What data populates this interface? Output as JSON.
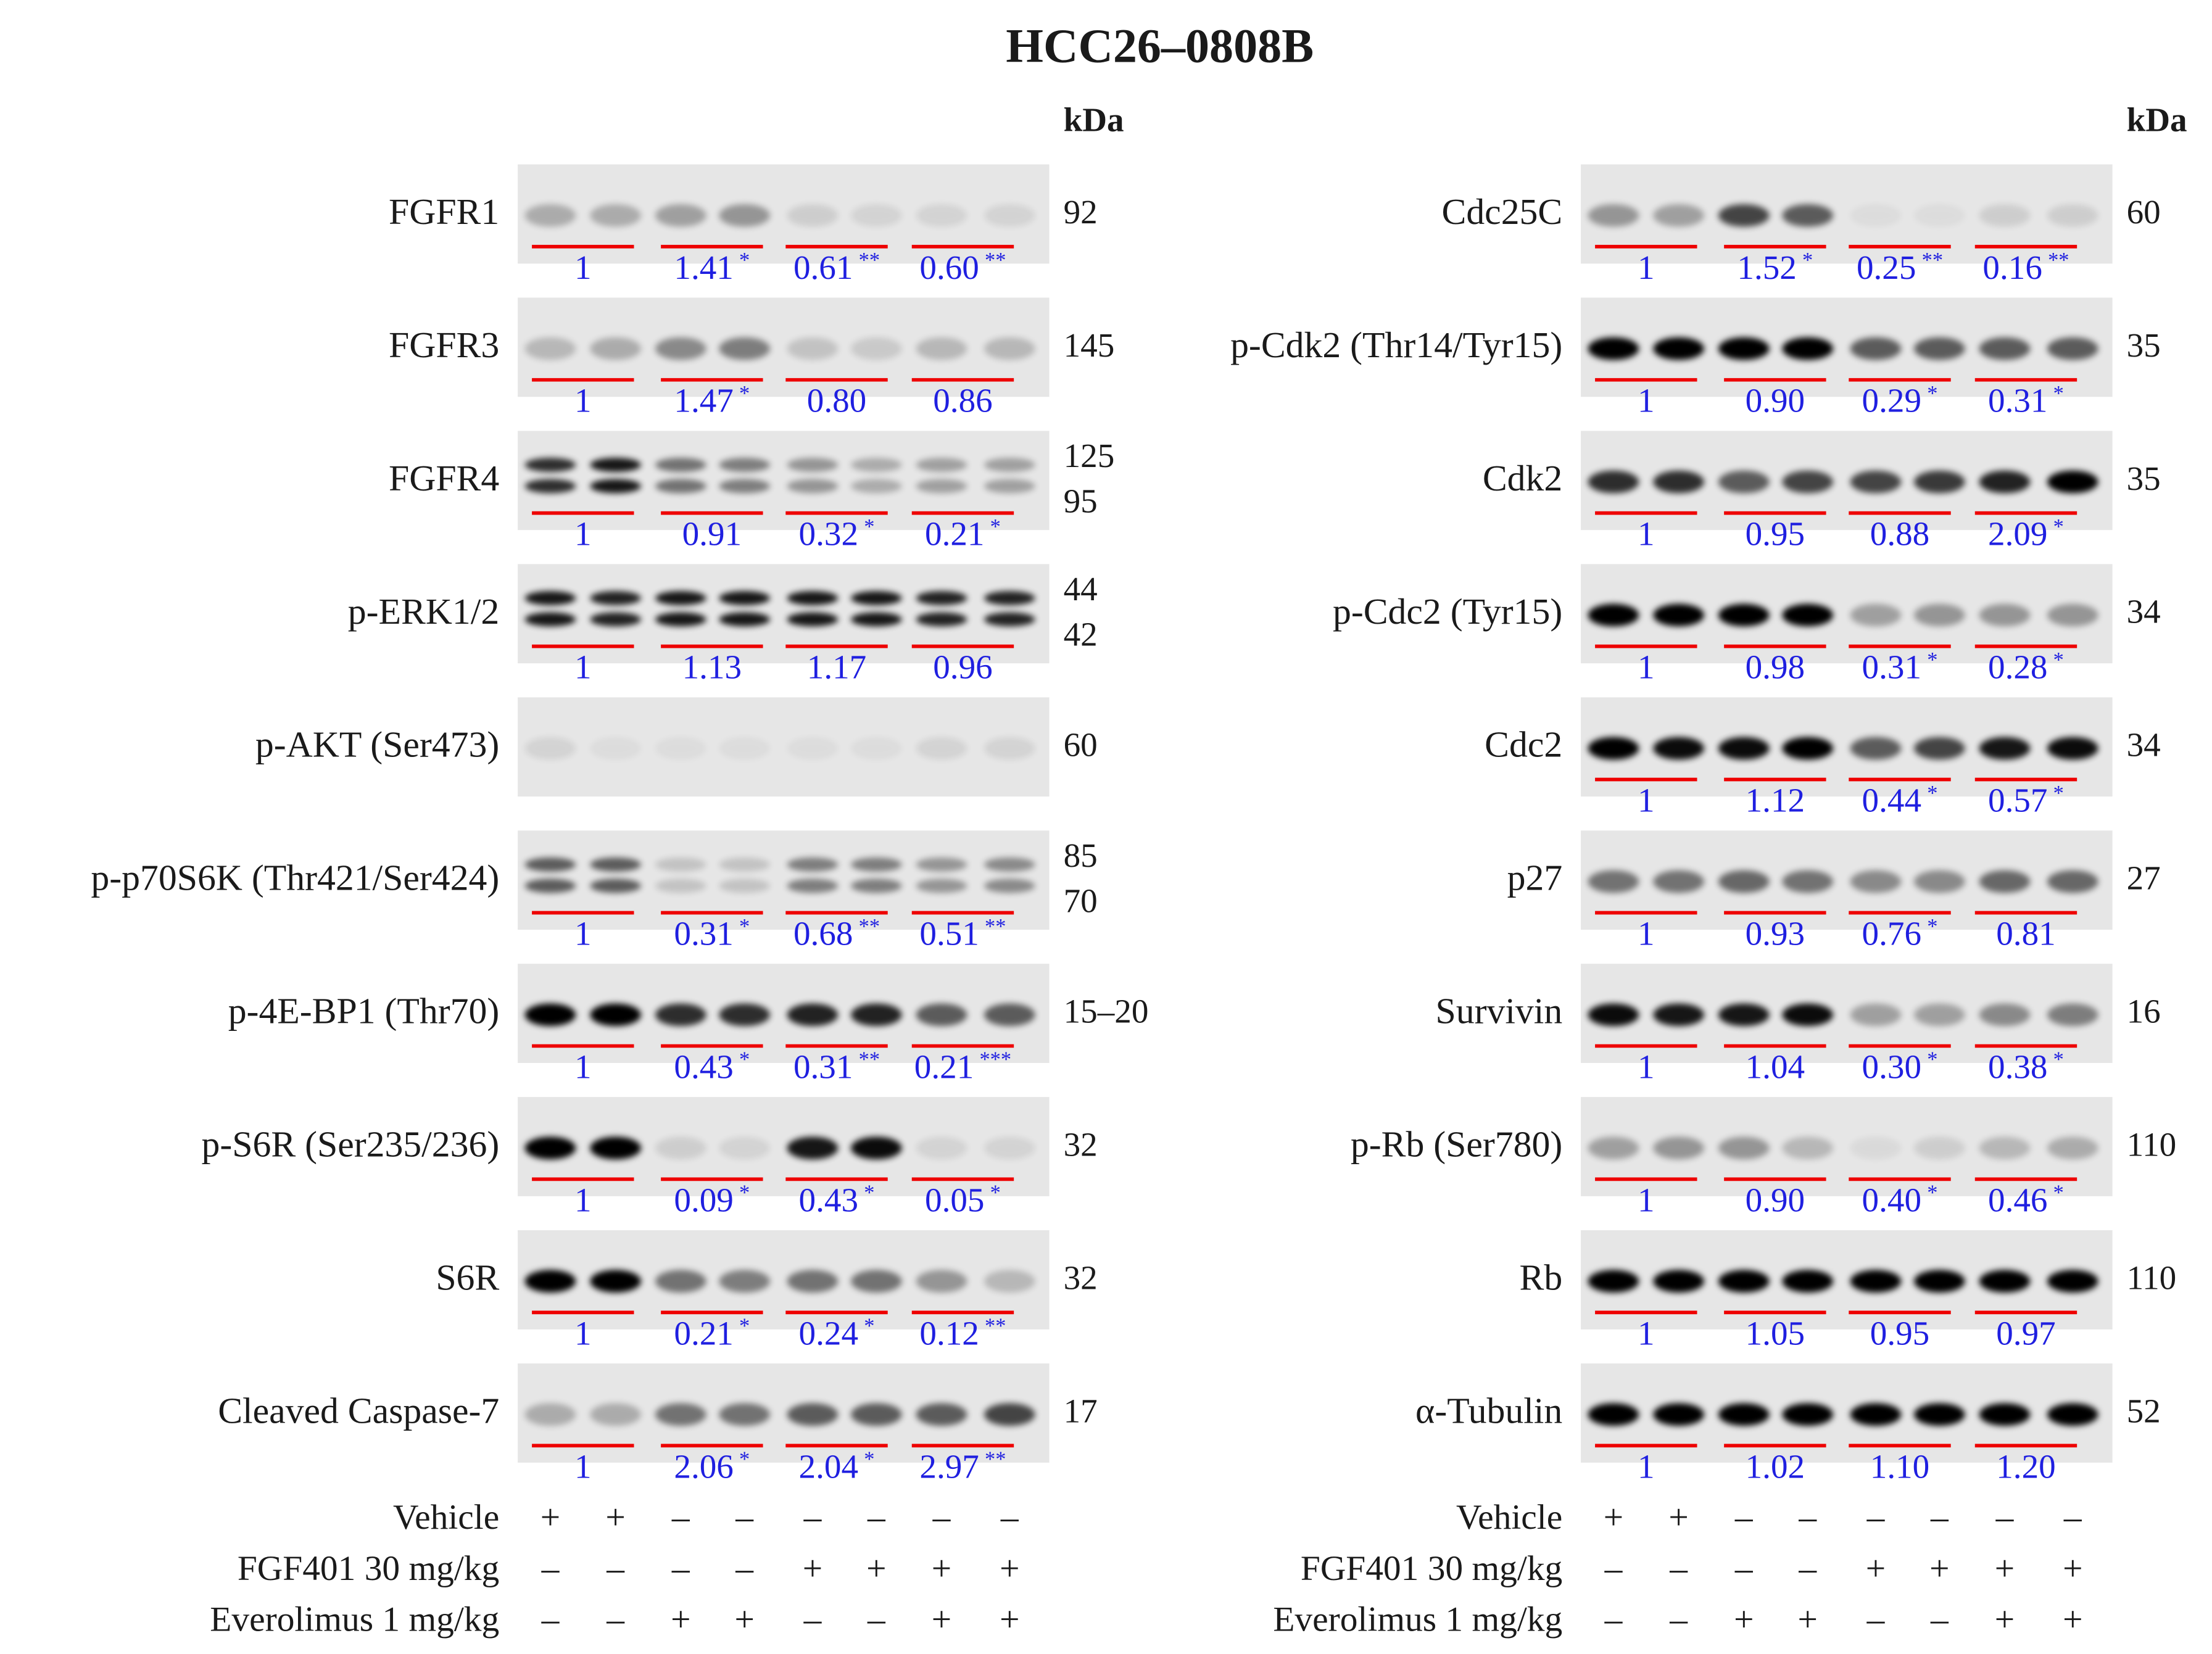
{
  "title": "HCC26–0808B",
  "kda_label": "kDa",
  "treatments": [
    {
      "label": "Vehicle",
      "signs": [
        "+",
        "+",
        "–",
        "–",
        "–",
        "–",
        "–",
        "–"
      ]
    },
    {
      "label": "FGF401 30 mg/kg",
      "signs": [
        "–",
        "–",
        "–",
        "–",
        "+",
        "+",
        "+",
        "+"
      ]
    },
    {
      "label": "Everolimus 1 mg/kg",
      "signs": [
        "–",
        "–",
        "+",
        "+",
        "–",
        "–",
        "+",
        "+"
      ]
    }
  ],
  "panels": [
    {
      "blots": [
        {
          "label": "FGFR1",
          "kda": [
            "92"
          ],
          "quant": [
            {
              "value": "1"
            },
            {
              "value": "1.41",
              "sig": "*"
            },
            {
              "value": "0.61",
              "sig": "**"
            },
            {
              "value": "0.60",
              "sig": "**"
            }
          ]
        },
        {
          "label": "FGFR3",
          "kda": [
            "145"
          ],
          "quant": [
            {
              "value": "1"
            },
            {
              "value": "1.47",
              "sig": "*"
            },
            {
              "value": "0.80"
            },
            {
              "value": "0.86"
            }
          ]
        },
        {
          "label": "FGFR4",
          "kda": [
            "125",
            "95"
          ],
          "quant": [
            {
              "value": "1"
            },
            {
              "value": "0.91"
            },
            {
              "value": "0.32",
              "sig": "*"
            },
            {
              "value": "0.21",
              "sig": "*"
            }
          ]
        },
        {
          "label": "p-ERK1/2",
          "kda": [
            "44",
            "42"
          ],
          "quant": [
            {
              "value": "1"
            },
            {
              "value": "1.13"
            },
            {
              "value": "1.17"
            },
            {
              "value": "0.96"
            }
          ]
        },
        {
          "label": "p-AKT (Ser473)",
          "kda": [
            "60"
          ],
          "quant": []
        },
        {
          "label": "p-p70S6K (Thr421/Ser424)",
          "kda": [
            "85",
            "70"
          ],
          "quant": [
            {
              "value": "1"
            },
            {
              "value": "0.31",
              "sig": "*"
            },
            {
              "value": "0.68",
              "sig": "**"
            },
            {
              "value": "0.51",
              "sig": "**"
            }
          ]
        },
        {
          "label": "p-4E-BP1 (Thr70)",
          "kda": [
            "15–20"
          ],
          "quant": [
            {
              "value": "1"
            },
            {
              "value": "0.43",
              "sig": "*"
            },
            {
              "value": "0.31",
              "sig": "**"
            },
            {
              "value": "0.21",
              "sig": "***"
            }
          ]
        },
        {
          "label": "p-S6R (Ser235/236)",
          "kda": [
            "32"
          ],
          "quant": [
            {
              "value": "1"
            },
            {
              "value": "0.09",
              "sig": "*"
            },
            {
              "value": "0.43",
              "sig": "*"
            },
            {
              "value": "0.05",
              "sig": "*"
            }
          ]
        },
        {
          "label": "S6R",
          "kda": [
            "32"
          ],
          "quant": [
            {
              "value": "1"
            },
            {
              "value": "0.21",
              "sig": "*"
            },
            {
              "value": "0.24",
              "sig": "*"
            },
            {
              "value": "0.12",
              "sig": "**"
            }
          ]
        },
        {
          "label": "Cleaved Caspase-7",
          "kda": [
            "17"
          ],
          "quant": [
            {
              "value": "1"
            },
            {
              "value": "2.06",
              "sig": "*"
            },
            {
              "value": "2.04",
              "sig": "*"
            },
            {
              "value": "2.97",
              "sig": "**"
            }
          ]
        }
      ]
    },
    {
      "blots": [
        {
          "label": "Cdc25C",
          "kda": [
            "60"
          ],
          "quant": [
            {
              "value": "1"
            },
            {
              "value": "1.52",
              "sig": "*"
            },
            {
              "value": "0.25",
              "sig": "**"
            },
            {
              "value": "0.16",
              "sig": "**"
            }
          ]
        },
        {
          "label": "p-Cdk2 (Thr14/Tyr15)",
          "kda": [
            "35"
          ],
          "quant": [
            {
              "value": "1"
            },
            {
              "value": "0.90"
            },
            {
              "value": "0.29",
              "sig": "*"
            },
            {
              "value": "0.31",
              "sig": "*"
            }
          ]
        },
        {
          "label": "Cdk2",
          "kda": [
            "35"
          ],
          "quant": [
            {
              "value": "1"
            },
            {
              "value": "0.95"
            },
            {
              "value": "0.88"
            },
            {
              "value": "2.09",
              "sig": "*"
            }
          ]
        },
        {
          "label": "p-Cdc2 (Tyr15)",
          "kda": [
            "34"
          ],
          "quant": [
            {
              "value": "1"
            },
            {
              "value": "0.98"
            },
            {
              "value": "0.31",
              "sig": "*"
            },
            {
              "value": "0.28",
              "sig": "*"
            }
          ]
        },
        {
          "label": "Cdc2",
          "kda": [
            "34"
          ],
          "quant": [
            {
              "value": "1"
            },
            {
              "value": "1.12"
            },
            {
              "value": "0.44",
              "sig": "*"
            },
            {
              "value": "0.57",
              "sig": "*"
            }
          ]
        },
        {
          "label": "p27",
          "kda": [
            "27"
          ],
          "quant": [
            {
              "value": "1"
            },
            {
              "value": "0.93"
            },
            {
              "value": "0.76",
              "sig": "*"
            },
            {
              "value": "0.81"
            }
          ]
        },
        {
          "label": "Survivin",
          "kda": [
            "16"
          ],
          "quant": [
            {
              "value": "1"
            },
            {
              "value": "1.04"
            },
            {
              "value": "0.30",
              "sig": "*"
            },
            {
              "value": "0.38",
              "sig": "*"
            }
          ]
        },
        {
          "label": "p-Rb (Ser780)",
          "kda": [
            "110"
          ],
          "quant": [
            {
              "value": "1"
            },
            {
              "value": "0.90"
            },
            {
              "value": "0.40",
              "sig": "*"
            },
            {
              "value": "0.46",
              "sig": "*"
            }
          ]
        },
        {
          "label": "Rb",
          "kda": [
            "110"
          ],
          "quant": [
            {
              "value": "1"
            },
            {
              "value": "1.05"
            },
            {
              "value": "0.95"
            },
            {
              "value": "0.97"
            }
          ]
        },
        {
          "label": "α-Tubulin",
          "kda": [
            "52"
          ],
          "quant": [
            {
              "value": "1"
            },
            {
              "value": "1.02"
            },
            {
              "value": "1.10"
            },
            {
              "value": "1.20"
            }
          ]
        }
      ]
    }
  ]
}
